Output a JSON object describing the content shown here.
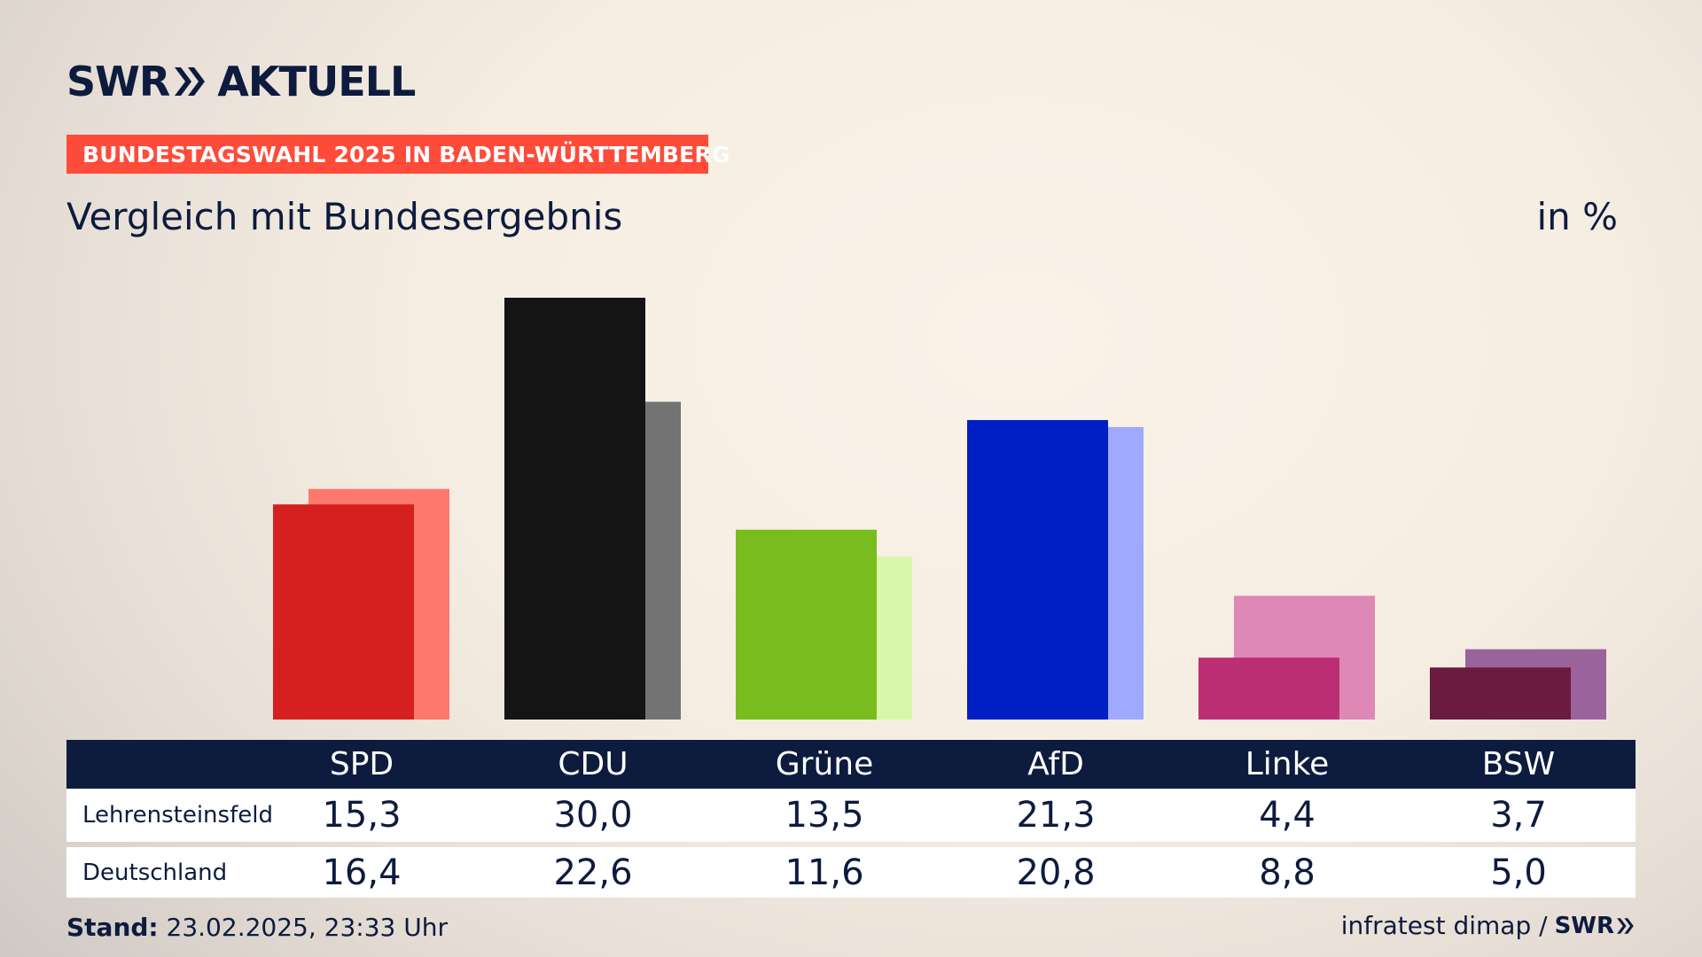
{
  "brand": {
    "logo": "SWR",
    "logo_suffix": "AKTUELL",
    "chevron_icon": "double-chevron-right-icon"
  },
  "header": {
    "banner": "BUNDESTAGSWAHL 2025 IN BADEN-WÜRTTEMBERG",
    "subtitle": "Vergleich mit Bundesergebnis",
    "unit": "in %"
  },
  "chart_data": {
    "type": "bar",
    "categories": [
      "SPD",
      "CDU",
      "Grüne",
      "AfD",
      "Linke",
      "BSW"
    ],
    "series": [
      {
        "name": "Lehrensteinsfeld",
        "values": [
          15.3,
          30.0,
          13.5,
          21.3,
          4.4,
          3.7
        ]
      },
      {
        "name": "Deutschland",
        "values": [
          16.4,
          22.6,
          11.6,
          20.8,
          8.8,
          5.0
        ]
      }
    ],
    "ylim": [
      0,
      30
    ],
    "grid": false,
    "colors": {
      "primary": [
        "#d6201f",
        "#141414",
        "#78bc1e",
        "#001fc5",
        "#bc2e73",
        "#6b1a40"
      ],
      "secondary": [
        "#ff786e",
        "#737373",
        "#d8f7a8",
        "#9ea9ff",
        "#de88b5",
        "#9b639c"
      ]
    },
    "display_values": [
      [
        "15,3",
        "30,0",
        "13,5",
        "21,3",
        "4,4",
        "3,7"
      ],
      [
        "16,4",
        "22,6",
        "11,6",
        "20,8",
        "8,8",
        "5,0"
      ]
    ]
  },
  "footer": {
    "stand_label": "Stand:",
    "stand_value": "23.02.2025, 23:33 Uhr",
    "source": "infratest dimap /",
    "source_logo": "SWR"
  }
}
